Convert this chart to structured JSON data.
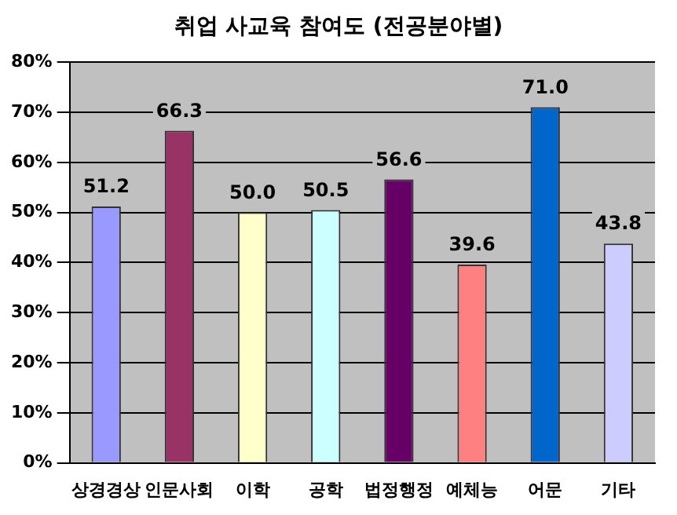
{
  "chart_data": {
    "type": "bar",
    "title": "취업 사교육 참여도 (전공분야별)",
    "categories": [
      "상경경상",
      "인문사회",
      "이학",
      "공학",
      "법정행정",
      "예체능",
      "어문",
      "기타"
    ],
    "values": [
      51.2,
      66.3,
      50.0,
      50.5,
      56.6,
      39.6,
      71.0,
      43.8
    ],
    "value_labels": [
      "51.2",
      "66.3",
      "50.0",
      "50.5",
      "56.6",
      "39.6",
      "71.0",
      "43.8"
    ],
    "colors": [
      "#9999ff",
      "#993366",
      "#ffffcc",
      "#ccffff",
      "#660066",
      "#ff8080",
      "#0066cc",
      "#ccccff"
    ],
    "ylim": [
      0,
      80
    ],
    "yticks": [
      {
        "value": 0,
        "label": "0%"
      },
      {
        "value": 10,
        "label": "10%"
      },
      {
        "value": 20,
        "label": "20%"
      },
      {
        "value": 30,
        "label": "30%"
      },
      {
        "value": 40,
        "label": "40%"
      },
      {
        "value": 50,
        "label": "50%"
      },
      {
        "value": 60,
        "label": "60%"
      },
      {
        "value": 70,
        "label": "70%"
      },
      {
        "value": 80,
        "label": "80%"
      }
    ],
    "grid": "y",
    "legend": false
  }
}
